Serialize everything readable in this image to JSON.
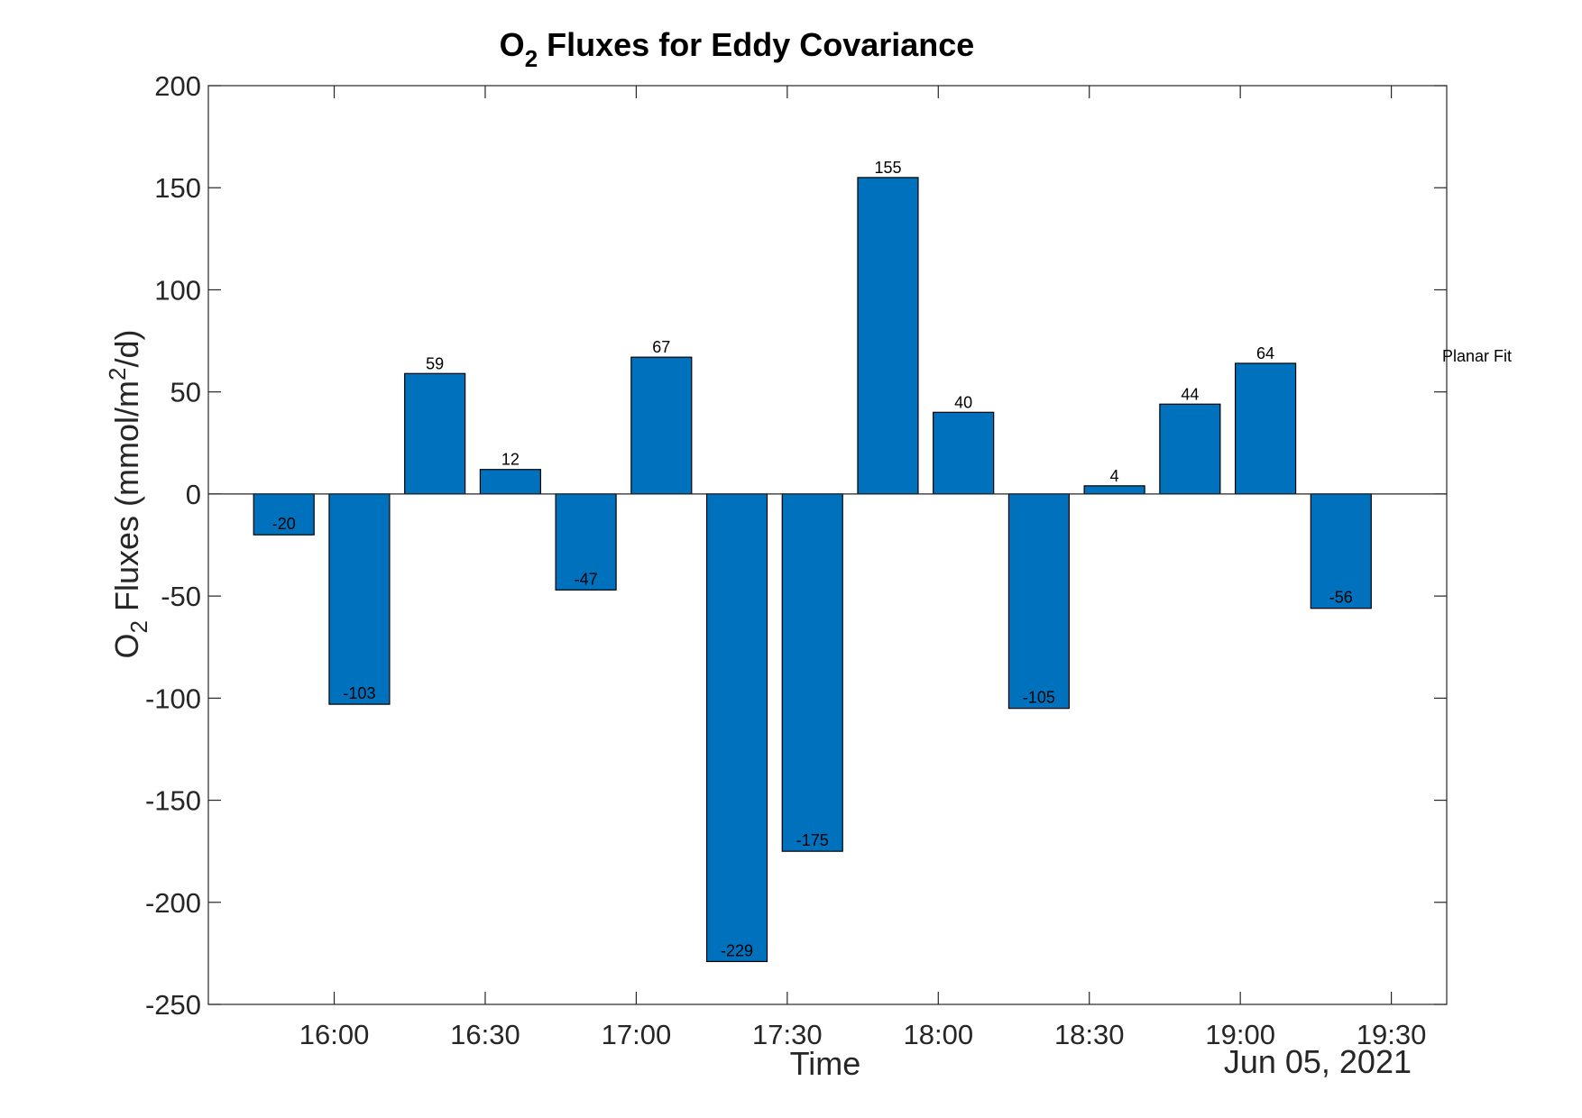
{
  "chart_data": {
    "type": "bar",
    "title": "O2 Fluxes for Eddy Covariance",
    "title_parts": {
      "main": "O",
      "sub": "2",
      "rest": " Fluxes for Eddy Covariance"
    },
    "xlabel": "Time",
    "ylabel": "O2 Fluxes (mmol/m2/d)",
    "ylabel_parts": {
      "prefix": "O",
      "sub": "2",
      "middle": " Fluxes (mmol/m",
      "sup": "2",
      "suffix": "/d)"
    },
    "date_label": "Jun 05, 2021",
    "annotation": "Planar Fit",
    "ylim": [
      -250,
      200
    ],
    "yticks": [
      -250,
      -200,
      -150,
      -100,
      -50,
      0,
      50,
      100,
      150,
      200
    ],
    "ytick_labels": [
      "-250",
      "-200",
      "-150",
      "-100",
      "-50",
      "0",
      "50",
      "100",
      "150",
      "200"
    ],
    "xlim": [
      "15:35",
      "19:41"
    ],
    "xticks": [
      "16:00",
      "16:30",
      "17:00",
      "17:30",
      "18:00",
      "18:30",
      "19:00",
      "19:30"
    ],
    "x": [
      "15:50",
      "16:05",
      "16:20",
      "16:35",
      "16:50",
      "17:05",
      "17:20",
      "17:35",
      "17:50",
      "18:05",
      "18:20",
      "18:35",
      "18:50",
      "19:05",
      "19:20"
    ],
    "values": [
      -20,
      -103,
      59,
      12,
      -47,
      67,
      -229,
      -175,
      155,
      40,
      -105,
      4,
      44,
      64,
      -56
    ],
    "value_labels": [
      "-20",
      "-103",
      "59",
      "12",
      "-47",
      "67",
      "-229",
      "-175",
      "155",
      "40",
      "-105",
      "4",
      "44",
      "64",
      "-56"
    ],
    "bar_color": "#0072BD",
    "grid": false,
    "box": true
  }
}
